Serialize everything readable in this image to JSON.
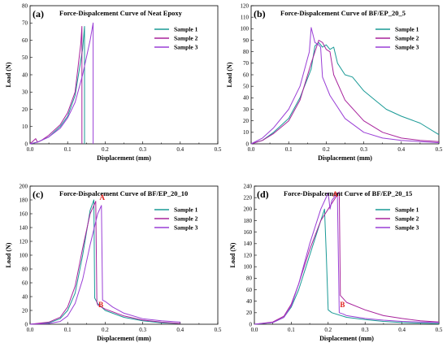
{
  "colors": {
    "sample1": "#1a9a96",
    "sample2": "#a8239c",
    "sample3": "#9a3fd6",
    "annotation": "#e0201e"
  },
  "chart_data": [
    {
      "type": "line",
      "panel": "(a)",
      "title": "Force-Dispalcement Curve of Neat Epoxy",
      "xlabel": "Displacement (mm)",
      "ylabel": "Load (N)",
      "xlim": [
        0,
        0.5
      ],
      "ylim": [
        0,
        80
      ],
      "xticks": [
        0,
        0.1,
        0.2,
        0.3,
        0.4,
        0.5
      ],
      "yticks": [
        0,
        10,
        20,
        30,
        40,
        50,
        60,
        70,
        80
      ],
      "xtick_labels": [
        "0.0",
        "0.1",
        "0.2",
        "0.3",
        "0.4",
        "0.5"
      ],
      "ytick_labels": [
        "0",
        "10",
        "20",
        "30",
        "40",
        "50",
        "60",
        "70",
        "80"
      ],
      "legend": "top-right",
      "series": [
        {
          "name": "Sample 1",
          "x": [
            0,
            0.02,
            0.05,
            0.08,
            0.1,
            0.12,
            0.14,
            0.145,
            0.145
          ],
          "y": [
            0,
            1,
            4,
            10,
            16,
            28,
            55,
            68,
            0
          ]
        },
        {
          "name": "Sample 2",
          "x": [
            0,
            0.015,
            0.02,
            0.03,
            0.05,
            0.08,
            0.1,
            0.12,
            0.135,
            0.138,
            0.138
          ],
          "y": [
            0,
            3,
            1,
            2,
            5,
            11,
            18,
            30,
            58,
            68,
            0
          ]
        },
        {
          "name": "Sample 3",
          "x": [
            0,
            0.02,
            0.05,
            0.08,
            0.1,
            0.12,
            0.14,
            0.16,
            0.168,
            0.168
          ],
          "y": [
            0,
            1,
            4,
            9,
            15,
            24,
            40,
            60,
            70,
            0
          ]
        }
      ],
      "annotations": []
    },
    {
      "type": "line",
      "panel": "(b)",
      "title": "Force-Dispalcement Curve of BF/EP_20_5",
      "xlabel": "Displacement (mm)",
      "ylabel": "Load (N)",
      "xlim": [
        0,
        0.5
      ],
      "ylim": [
        0,
        120
      ],
      "xticks": [
        0,
        0.1,
        0.2,
        0.3,
        0.4,
        0.5
      ],
      "yticks": [
        0,
        10,
        20,
        30,
        40,
        50,
        60,
        70,
        80,
        90,
        100,
        110,
        120
      ],
      "xtick_labels": [
        "0.0",
        "0.1",
        "0.2",
        "0.3",
        "0.4",
        "0.5"
      ],
      "ytick_labels": [
        "0",
        "10",
        "20",
        "30",
        "40",
        "50",
        "60",
        "70",
        "80",
        "90",
        "100",
        "110",
        "120"
      ],
      "legend": "top-right",
      "series": [
        {
          "name": "Sample 1",
          "x": [
            0,
            0.03,
            0.06,
            0.1,
            0.13,
            0.16,
            0.17,
            0.18,
            0.19,
            0.2,
            0.21,
            0.22,
            0.23,
            0.25,
            0.27,
            0.3,
            0.33,
            0.36,
            0.4,
            0.45,
            0.5
          ],
          "y": [
            0,
            3,
            10,
            22,
            40,
            65,
            85,
            88,
            84,
            86,
            82,
            84,
            70,
            60,
            58,
            46,
            38,
            30,
            24,
            18,
            8
          ]
        },
        {
          "name": "Sample 2",
          "x": [
            0,
            0.03,
            0.06,
            0.1,
            0.13,
            0.16,
            0.18,
            0.19,
            0.2,
            0.21,
            0.22,
            0.25,
            0.3,
            0.35,
            0.4,
            0.45,
            0.5
          ],
          "y": [
            0,
            3,
            9,
            20,
            38,
            70,
            90,
            88,
            82,
            80,
            60,
            38,
            20,
            10,
            5,
            3,
            2
          ]
        },
        {
          "name": "Sample 3",
          "x": [
            0,
            0.03,
            0.06,
            0.1,
            0.13,
            0.155,
            0.16,
            0.17,
            0.18,
            0.185,
            0.19,
            0.21,
            0.25,
            0.3,
            0.35,
            0.4,
            0.45,
            0.5
          ],
          "y": [
            0,
            5,
            14,
            30,
            50,
            80,
            101,
            88,
            86,
            84,
            58,
            42,
            22,
            10,
            5,
            3,
            2,
            1
          ]
        }
      ],
      "annotations": []
    },
    {
      "type": "line",
      "panel": "(c)",
      "title": "Force-Dispalcement Curve of BF/EP_20_10",
      "xlabel": "Displacement (mm)",
      "ylabel": "Load (N)",
      "xlim": [
        0,
        0.5
      ],
      "ylim": [
        0,
        200
      ],
      "xticks": [
        0,
        0.1,
        0.2,
        0.3,
        0.4,
        0.5
      ],
      "yticks": [
        0,
        20,
        40,
        60,
        80,
        100,
        120,
        140,
        160,
        180,
        200
      ],
      "xtick_labels": [
        "0.0",
        "0.1",
        "0.2",
        "0.3",
        "0.4",
        "0.5"
      ],
      "ytick_labels": [
        "0",
        "20",
        "40",
        "60",
        "80",
        "100",
        "120",
        "140",
        "160",
        "180",
        "200"
      ],
      "legend": "top-right",
      "series": [
        {
          "name": "Sample 1",
          "x": [
            0,
            0.05,
            0.08,
            0.1,
            0.12,
            0.14,
            0.16,
            0.17,
            0.172,
            0.18,
            0.2,
            0.25,
            0.3,
            0.35,
            0.4
          ],
          "y": [
            0,
            2,
            8,
            20,
            45,
            100,
            165,
            180,
            38,
            30,
            20,
            10,
            5,
            2,
            1
          ]
        },
        {
          "name": "Sample 2",
          "x": [
            0,
            0.05,
            0.08,
            0.1,
            0.12,
            0.14,
            0.16,
            0.175,
            0.178,
            0.18,
            0.2,
            0.25,
            0.3,
            0.35,
            0.4
          ],
          "y": [
            0,
            3,
            10,
            25,
            55,
            110,
            160,
            178,
            32,
            28,
            22,
            12,
            6,
            3,
            1
          ]
        },
        {
          "name": "Sample 3",
          "x": [
            0,
            0.05,
            0.08,
            0.1,
            0.12,
            0.14,
            0.16,
            0.18,
            0.19,
            0.193,
            0.2,
            0.22,
            0.25,
            0.3,
            0.35,
            0.4
          ],
          "y": [
            0,
            1,
            4,
            12,
            30,
            65,
            115,
            160,
            172,
            35,
            33,
            25,
            16,
            8,
            5,
            3
          ]
        }
      ],
      "annotations": [
        {
          "text": "A",
          "x": 0.185,
          "y": 180
        },
        {
          "text": "B",
          "x": 0.182,
          "y": 25
        }
      ]
    },
    {
      "type": "line",
      "panel": "(d)",
      "title": "Force-Dispalcement Curve of BF/EP_20_15",
      "xlabel": "Displacement (mm)",
      "ylabel": "Load (N)",
      "xlim": [
        0,
        0.5
      ],
      "ylim": [
        0,
        240
      ],
      "xticks": [
        0,
        0.1,
        0.2,
        0.3,
        0.4,
        0.5
      ],
      "yticks": [
        0,
        20,
        40,
        60,
        80,
        100,
        120,
        140,
        160,
        180,
        200,
        220,
        240
      ],
      "xtick_labels": [
        "0.0",
        "0.1",
        "0.2",
        "0.3",
        "0.4",
        "0.5"
      ],
      "ytick_labels": [
        "0",
        "20",
        "40",
        "60",
        "80",
        "100",
        "120",
        "140",
        "160",
        "180",
        "200",
        "220",
        "240"
      ],
      "legend": "top-right",
      "series": [
        {
          "name": "Sample 1",
          "x": [
            0,
            0.05,
            0.08,
            0.1,
            0.12,
            0.15,
            0.18,
            0.19,
            0.195,
            0.2,
            0.21,
            0.25,
            0.3,
            0.35,
            0.4,
            0.45,
            0.5
          ],
          "y": [
            0,
            3,
            12,
            30,
            60,
            120,
            180,
            200,
            120,
            25,
            20,
            12,
            8,
            5,
            3,
            2,
            1
          ]
        },
        {
          "name": "Sample 2",
          "x": [
            0,
            0.05,
            0.08,
            0.1,
            0.12,
            0.15,
            0.18,
            0.2,
            0.23,
            0.233,
            0.24,
            0.25,
            0.3,
            0.35,
            0.4,
            0.45,
            0.5
          ],
          "y": [
            0,
            4,
            14,
            35,
            70,
            130,
            180,
            200,
            230,
            50,
            45,
            38,
            25,
            15,
            10,
            6,
            4
          ]
        },
        {
          "name": "Sample 3",
          "x": [
            0,
            0.05,
            0.08,
            0.1,
            0.12,
            0.15,
            0.18,
            0.2,
            0.205,
            0.21,
            0.225,
            0.23,
            0.24,
            0.25,
            0.3,
            0.35,
            0.4,
            0.45,
            0.5
          ],
          "y": [
            0,
            3,
            12,
            32,
            70,
            140,
            200,
            228,
            200,
            215,
            228,
            20,
            18,
            15,
            10,
            7,
            5,
            4,
            3
          ]
        }
      ],
      "annotations": [
        {
          "text": "A",
          "x": 0.212,
          "y": 222
        },
        {
          "text": "B",
          "x": 0.232,
          "y": 30
        }
      ]
    }
  ]
}
